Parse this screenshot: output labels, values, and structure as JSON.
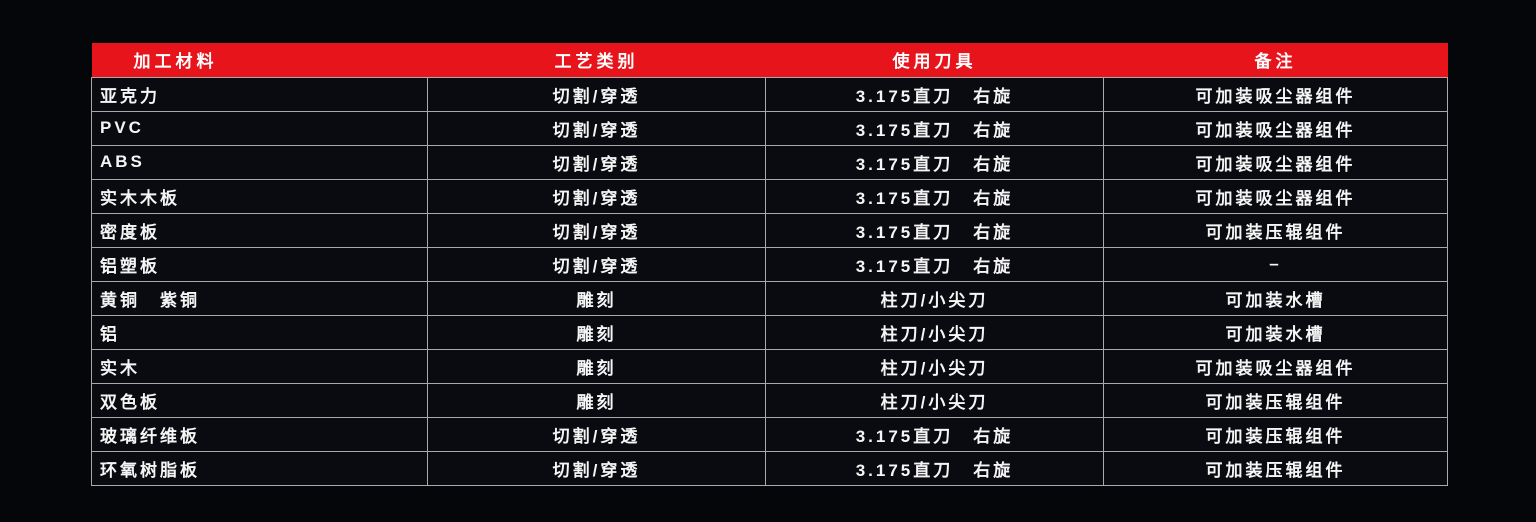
{
  "page": {
    "background_color": "#04060a"
  },
  "table": {
    "accent_color": "#e8141c",
    "border_color": "#a9a9a9",
    "cell_background": "#0a0b10",
    "text_color": "#f5f5f5",
    "headers": [
      "加工材料",
      "工艺类别",
      "使用刀具",
      "备注"
    ],
    "rows": [
      [
        "亚克力",
        "切割/穿透",
        "3.175直刀　右旋",
        "可加装吸尘器组件"
      ],
      [
        "PVC",
        "切割/穿透",
        "3.175直刀　右旋",
        "可加装吸尘器组件"
      ],
      [
        "ABS",
        "切割/穿透",
        "3.175直刀　右旋",
        "可加装吸尘器组件"
      ],
      [
        "实木木板",
        "切割/穿透",
        "3.175直刀　右旋",
        "可加装吸尘器组件"
      ],
      [
        "密度板",
        "切割/穿透",
        "3.175直刀　右旋",
        "可加装压辊组件"
      ],
      [
        "铝塑板",
        "切割/穿透",
        "3.175直刀　右旋",
        "–"
      ],
      [
        "黄铜　紫铜",
        "雕刻",
        "柱刀/小尖刀",
        "可加装水槽"
      ],
      [
        "铝",
        "雕刻",
        "柱刀/小尖刀",
        "可加装水槽"
      ],
      [
        "实木",
        "雕刻",
        "柱刀/小尖刀",
        "可加装吸尘器组件"
      ],
      [
        "双色板",
        "雕刻",
        "柱刀/小尖刀",
        "可加装压辊组件"
      ],
      [
        "玻璃纤维板",
        "切割/穿透",
        "3.175直刀　右旋",
        "可加装压辊组件"
      ],
      [
        "环氧树脂板",
        "切割/穿透",
        "3.175直刀　右旋",
        "可加装压辊组件"
      ]
    ]
  },
  "chart_data": {
    "type": "table",
    "title": "",
    "columns": [
      "加工材料",
      "工艺类别",
      "使用刀具",
      "备注"
    ],
    "rows": [
      [
        "亚克力",
        "切割/穿透",
        "3.175直刀 右旋",
        "可加装吸尘器组件"
      ],
      [
        "PVC",
        "切割/穿透",
        "3.175直刀 右旋",
        "可加装吸尘器组件"
      ],
      [
        "ABS",
        "切割/穿透",
        "3.175直刀 右旋",
        "可加装吸尘器组件"
      ],
      [
        "实木木板",
        "切割/穿透",
        "3.175直刀 右旋",
        "可加装吸尘器组件"
      ],
      [
        "密度板",
        "切割/穿透",
        "3.175直刀 右旋",
        "可加装压辊组件"
      ],
      [
        "铝塑板",
        "切割/穿透",
        "3.175直刀 右旋",
        "–"
      ],
      [
        "黄铜 紫铜",
        "雕刻",
        "柱刀/小尖刀",
        "可加装水槽"
      ],
      [
        "铝",
        "雕刻",
        "柱刀/小尖刀",
        "可加装水槽"
      ],
      [
        "实木",
        "雕刻",
        "柱刀/小尖刀",
        "可加装吸尘器组件"
      ],
      [
        "双色板",
        "雕刻",
        "柱刀/小尖刀",
        "可加装压辊组件"
      ],
      [
        "玻璃纤维板",
        "切割/穿透",
        "3.175直刀 右旋",
        "可加装压辊组件"
      ],
      [
        "环氧树脂板",
        "切割/穿透",
        "3.175直刀 右旋",
        "可加装压辊组件"
      ]
    ],
    "layout_hints": {
      "header_background": "#e8141c",
      "grid": true,
      "background": "dark"
    }
  }
}
